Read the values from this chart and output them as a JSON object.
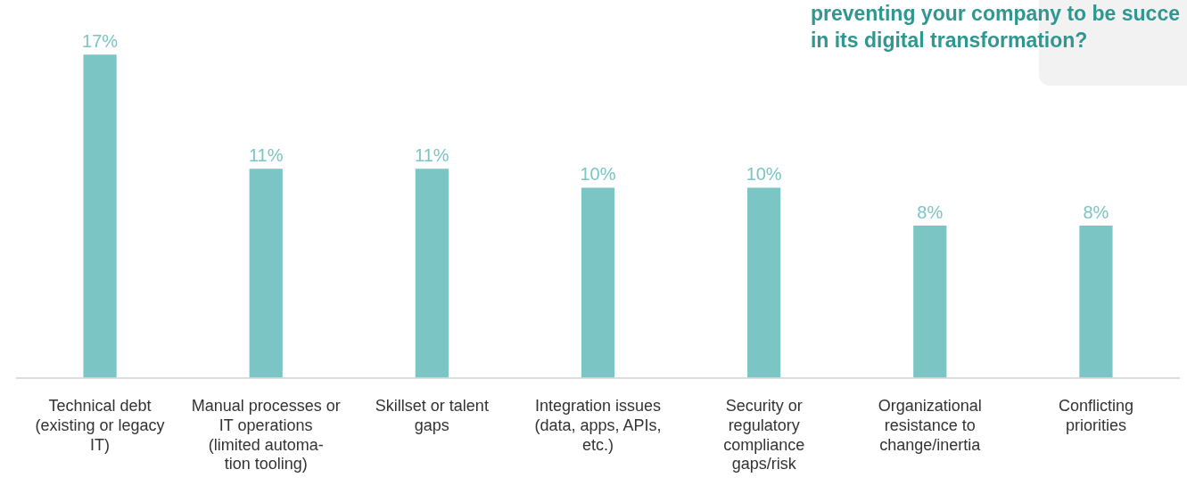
{
  "chart_data": {
    "type": "bar",
    "title": "preventing your company to be succe\nin its digital transformation?",
    "categories": [
      "Technical debt (existing or legacy IT)",
      "Manual processes or IT operations (limited automa- tion tooling)",
      "Skillset or talent gaps",
      "Integration issues (data, apps, APIs, etc.)",
      "Security or regulatory compliance gaps/risk",
      "Organizational resistance to change/inertia",
      "Conflicting priorities"
    ],
    "values": [
      17,
      11,
      11,
      10,
      10,
      8,
      8
    ],
    "value_labels": [
      "17%",
      "11%",
      "11%",
      "10%",
      "10%",
      "8%",
      "8%"
    ],
    "color": "#7cc5c5",
    "grid": false,
    "legend": false
  }
}
